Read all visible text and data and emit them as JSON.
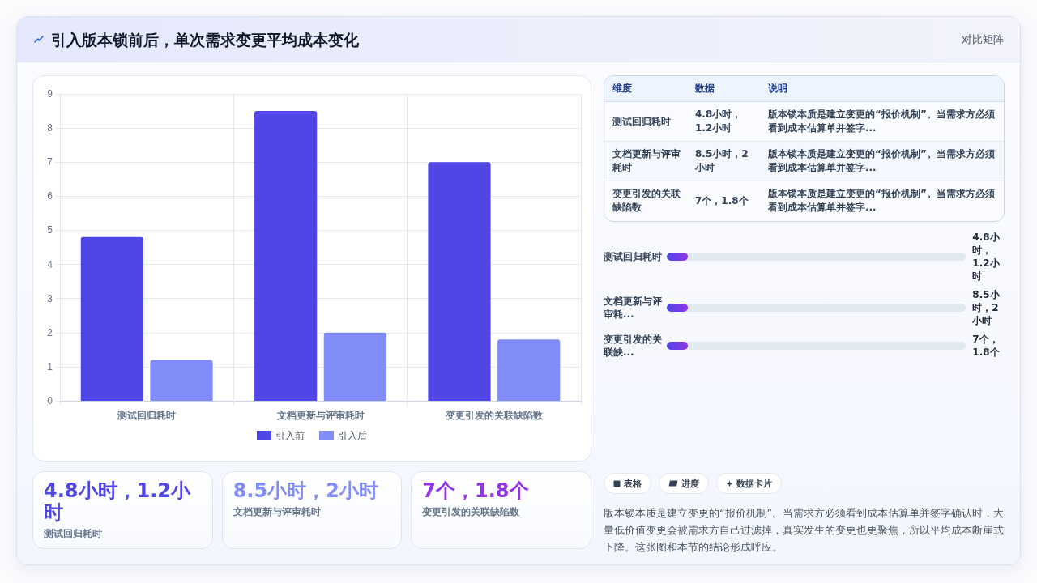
{
  "chart_data": [
    {
      "type": "bar",
      "title": "引入版本锁前后，单次需求变更平均成本变化",
      "annotations": [
        "对比矩阵"
      ],
      "categories": [
        "测试回归耗时",
        "文档更新与评审耗时",
        "变更引发的关联缺陷数"
      ],
      "series": [
        {
          "name": "引入前",
          "color": "#4f46e5",
          "values": [
            4.8,
            8.5,
            7
          ]
        },
        {
          "name": "引入后",
          "color": "#818cf8",
          "values": [
            1.2,
            2,
            1.8
          ]
        }
      ],
      "ylim": [
        0,
        9
      ],
      "yticks": [
        0,
        1,
        2,
        3,
        4,
        5,
        6,
        7,
        8,
        9
      ],
      "grid": true,
      "legend": "bottom"
    },
    {
      "type": "other",
      "categories": [
        "维度",
        "数据",
        "说明"
      ],
      "cell_labels": [
        [
          "测试回归耗时",
          "4.8小时，1.2小时",
          "版本锁本质是建立变更的“报价机制”。当需求方必须看到成本估算单并签字..."
        ],
        [
          "文档更新与评审耗时",
          "8.5小时，2小时",
          "版本锁本质是建立变更的“报价机制”。当需求方必须看到成本估算单并签字..."
        ],
        [
          "变更引发的关联缺陷数",
          "7个，1.8个",
          "版本锁本质是建立变更的“报价机制”。当需求方必须看到成本估算单并签字..."
        ]
      ]
    },
    {
      "type": "other",
      "categories": [
        "测试回归耗时",
        "文档更新与评审耗...",
        "变更引发的关联缺..."
      ],
      "value_labels": [
        "4.8小时，1.2小时",
        "8.5小时，2小时",
        "7个，1.8个"
      ]
    },
    {
      "type": "other",
      "categories": [
        "测试回归耗时",
        "文档更新与评审耗时",
        "变更引发的关联缺陷数"
      ],
      "value_labels": [
        "4.8小时，1.2小时",
        "8.5小时，2小时",
        "7个，1.8个"
      ]
    },
    {
      "type": "other",
      "categories": [
        "表格",
        "进度",
        "数据卡片"
      ],
      "annotations": [
        "版本锁本质是建立变更的“报价机制”。当需求方必须看到成本估算单并签字确认时，大量低价值变更会被需求方自己过滤掉，真实发生的变更也更聚焦，所以平均成本断崖式下降。这张图和本节的结论形成呼应。"
      ]
    }
  ]
}
